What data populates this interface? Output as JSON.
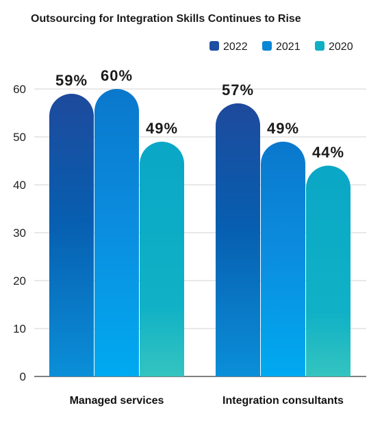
{
  "chart_data": {
    "type": "bar",
    "title": "Outsourcing for Integration Skills Continues to Rise",
    "categories": [
      "Managed services",
      "Integration consultants"
    ],
    "series": [
      {
        "name": "2022",
        "values": [
          59,
          57
        ],
        "labels": [
          "59%",
          "57%"
        ],
        "color": "#1d4fa3"
      },
      {
        "name": "2021",
        "values": [
          60,
          49
        ],
        "labels": [
          "60%",
          "49%"
        ],
        "color": "#0a86d6"
      },
      {
        "name": "2020",
        "values": [
          49,
          44
        ],
        "labels": [
          "49%",
          "44%"
        ],
        "color": "#0fb0c4"
      }
    ],
    "ylim": [
      0,
      60
    ],
    "yticks": [
      0,
      10,
      20,
      30,
      40,
      50,
      60
    ],
    "grid": true,
    "legend": "top-right",
    "xlabel": "",
    "ylabel": ""
  }
}
